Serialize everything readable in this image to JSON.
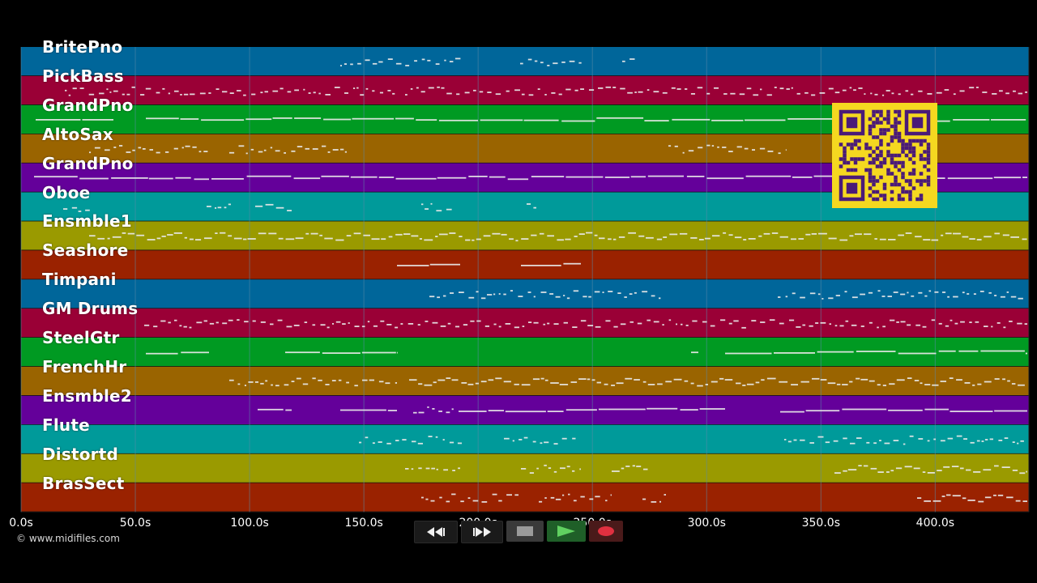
{
  "tracks": [
    {
      "name": "BritePno",
      "color": "#00669a"
    },
    {
      "name": "PickBass",
      "color": "#9a0036"
    },
    {
      "name": "GrandPno",
      "color": "#009a22"
    },
    {
      "name": "AltoSax",
      "color": "#9a6400"
    },
    {
      "name": "GrandPno",
      "color": "#64009a"
    },
    {
      "name": "Oboe",
      "color": "#009a9a"
    },
    {
      "name": "Ensmble1",
      "color": "#9a9a00"
    },
    {
      "name": "Seashore",
      "color": "#9a2200"
    },
    {
      "name": "Timpani",
      "color": "#00669a"
    },
    {
      "name": "GM Drums",
      "color": "#9a0036"
    },
    {
      "name": "SteelGtr",
      "color": "#009a22"
    },
    {
      "name": "FrenchHr",
      "color": "#9a6400"
    },
    {
      "name": "Ensmble2",
      "color": "#64009a"
    },
    {
      "name": "Flute",
      "color": "#009a9a"
    },
    {
      "name": "Distortd",
      "color": "#9a9a00"
    },
    {
      "name": "BrasSect",
      "color": "#9a2200"
    }
  ],
  "time_axis": {
    "max_seconds": 441,
    "ticks": [
      "0.0s",
      "50.0s",
      "100.0s",
      "150.0s",
      "200.0s",
      "250.0s",
      "300.0s",
      "350.0s",
      "400.0s"
    ],
    "tick_values": [
      0,
      50,
      100,
      150,
      200,
      250,
      300,
      350,
      400
    ]
  },
  "copyright": "© www.midifiles.com",
  "transport": {
    "buttons": [
      {
        "name": "rewind-button",
        "icon": "rewind-icon"
      },
      {
        "name": "fast-forward-button",
        "icon": "fast-forward-icon"
      },
      {
        "name": "stop-button",
        "icon": "stop-icon"
      },
      {
        "name": "play-button",
        "icon": "play-icon"
      },
      {
        "name": "record-button",
        "icon": "record-icon"
      }
    ]
  },
  "colors": {
    "background": "#000000",
    "grid_line": "#5a8aa8",
    "note": "#e8e8e8",
    "qr_background": "#f5d820",
    "qr_module": "#4a1a78",
    "record": "#e03040",
    "play": "#60d060"
  }
}
